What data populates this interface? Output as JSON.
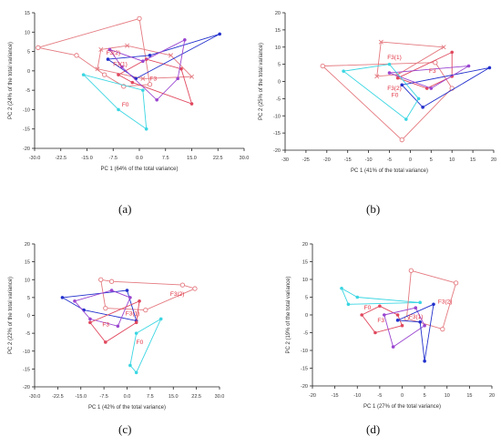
{
  "panel_labels": [
    "(a)",
    "(b)",
    "(c)",
    "(d)"
  ],
  "colors": {
    "red": "#e0485e",
    "pink": "#e2708a",
    "lightred": "#e47a80",
    "blue": "#2230cc",
    "purple": "#9a45d0",
    "cyan": "#3ad6e2",
    "axis": "#222222",
    "text": "#333333",
    "label_red": "#e03040"
  },
  "chart_data": [
    {
      "type": "scatter",
      "panel": "(a)",
      "title": "",
      "xlabel": "PC 1 (64% of the total variance)",
      "ylabel": "PC 2 (24% of the total variance)",
      "xlim": [
        -30,
        30
      ],
      "ylim": [
        -20,
        15
      ],
      "xticks": [
        "-30.0",
        "-22.5",
        "-15.0",
        "-7.5",
        "0.0",
        "7.5",
        "15.0",
        "22.5",
        "30.0"
      ],
      "yticks": [
        "15",
        "10",
        "5",
        "0",
        "-5",
        "-10",
        "-15",
        "-20"
      ],
      "grid": false,
      "annotations": [
        {
          "text": "F3(2)",
          "x": -9.5,
          "y": 4.2
        },
        {
          "text": "F3(1)",
          "x": -7.5,
          "y": 1.2
        },
        {
          "text": "F3",
          "x": 3.0,
          "y": -2.5
        },
        {
          "text": "F0",
          "x": -5.0,
          "y": -9.2
        }
      ],
      "series": [
        {
          "color": "lightred",
          "marker": "circle-open",
          "points": [
            [
              -29,
              6
            ],
            [
              0,
              13.5
            ],
            [
              3,
              -3.5
            ],
            [
              -4.5,
              -4
            ],
            [
              -10,
              -1
            ],
            [
              -18,
              4
            ],
            [
              -29,
              6
            ]
          ]
        },
        {
          "color": "lightred",
          "marker": "x",
          "points": [
            [
              -11,
              5.5
            ],
            [
              -3.5,
              6.5
            ],
            [
              9,
              4
            ],
            [
              15,
              -1.5
            ],
            [
              1,
              -2
            ],
            [
              -12,
              0.5
            ],
            [
              -11,
              5.5
            ]
          ]
        },
        {
          "color": "red",
          "marker": "circle",
          "points": [
            [
              -6,
              -1
            ],
            [
              2,
              3
            ],
            [
              12,
              0.5
            ],
            [
              15,
              -8.5
            ],
            [
              -2,
              -3
            ],
            [
              -6,
              -1
            ]
          ]
        },
        {
          "color": "blue",
          "marker": "circle",
          "points": [
            [
              -9,
              3
            ],
            [
              3,
              4
            ],
            [
              23,
              9.5
            ],
            [
              -1,
              -2
            ],
            [
              -9,
              3
            ]
          ]
        },
        {
          "color": "purple",
          "marker": "circle",
          "points": [
            [
              -8.5,
              5.5
            ],
            [
              1,
              2.5
            ],
            [
              13,
              8
            ],
            [
              11,
              -2
            ],
            [
              5,
              -7.5
            ],
            [
              -5,
              1
            ],
            [
              -8.5,
              5.5
            ]
          ]
        },
        {
          "color": "cyan",
          "marker": "circle",
          "points": [
            [
              -16,
              -1
            ],
            [
              1,
              -5
            ],
            [
              2,
              -15
            ],
            [
              -6,
              -10
            ],
            [
              -16,
              -1
            ]
          ]
        }
      ]
    },
    {
      "type": "scatter",
      "panel": "(b)",
      "title": "",
      "xlabel": "PC 1 (41% of the total variance)",
      "ylabel": "PC 2 (25% of the total variance)",
      "xlim": [
        -30,
        20
      ],
      "ylim": [
        -20,
        20
      ],
      "xticks": [
        "-30",
        "-25",
        "-20",
        "-15",
        "-10",
        "-5",
        "0",
        "5",
        "10",
        "15",
        "20"
      ],
      "yticks": [
        "20",
        "15",
        "10",
        "5",
        "0",
        "-5",
        "-10",
        "-15",
        "-20"
      ],
      "grid": false,
      "annotations": [
        {
          "text": "F3(1)",
          "x": -5.5,
          "y": 6.5
        },
        {
          "text": "F3",
          "x": 4.5,
          "y": 2.5
        },
        {
          "text": "F3(2)",
          "x": -5.5,
          "y": -2.5
        },
        {
          "text": "F0",
          "x": -4.5,
          "y": -4.5
        }
      ],
      "series": [
        {
          "color": "lightred",
          "marker": "x",
          "points": [
            [
              -7,
              11.5
            ],
            [
              8,
              10
            ],
            [
              -3,
              2
            ],
            [
              -8,
              1.5
            ],
            [
              -7,
              11.5
            ]
          ]
        },
        {
          "color": "lightred",
          "marker": "circle-open",
          "points": [
            [
              -21,
              4.5
            ],
            [
              6,
              5.5
            ],
            [
              10,
              -2
            ],
            [
              -2,
              -17
            ],
            [
              -21,
              4.5
            ]
          ]
        },
        {
          "color": "red",
          "marker": "circle",
          "points": [
            [
              -3,
              1
            ],
            [
              10,
              8.5
            ],
            [
              10,
              1.5
            ],
            [
              4,
              -2
            ],
            [
              -3,
              1
            ]
          ]
        },
        {
          "color": "blue",
          "marker": "circle",
          "points": [
            [
              -2,
              -1
            ],
            [
              19,
              4
            ],
            [
              3,
              -7.5
            ],
            [
              -2,
              -1
            ]
          ]
        },
        {
          "color": "purple",
          "marker": "circle",
          "points": [
            [
              -5,
              2.5
            ],
            [
              14,
              4.5
            ],
            [
              5,
              -2
            ],
            [
              -5,
              2.5
            ]
          ]
        },
        {
          "color": "cyan",
          "marker": "circle",
          "points": [
            [
              -16,
              3
            ],
            [
              -5,
              5
            ],
            [
              2,
              -5
            ],
            [
              -1,
              -11
            ],
            [
              -16,
              3
            ]
          ]
        }
      ]
    },
    {
      "type": "scatter",
      "panel": "(c)",
      "title": "",
      "xlabel": "PC 1 (42% of the total variance)",
      "ylabel": "PC 2 (22% of the total variance)",
      "xlim": [
        -30,
        30
      ],
      "ylim": [
        -20,
        20
      ],
      "xticks": [
        "-30.0",
        "-22.5",
        "-15.0",
        "-7.5",
        "0.0",
        "7.5",
        "15.0",
        "22.5",
        "30.0"
      ],
      "yticks": [
        "20",
        "15",
        "10",
        "5",
        "0",
        "-5",
        "-10",
        "-15",
        "-20"
      ],
      "grid": false,
      "annotations": [
        {
          "text": "F3(2)",
          "x": 14,
          "y": 5.5
        },
        {
          "text": "F3(1)",
          "x": -0.5,
          "y": 0
        },
        {
          "text": "F3",
          "x": -8,
          "y": -3
        },
        {
          "text": "F0",
          "x": 3,
          "y": -8
        }
      ],
      "series": [
        {
          "color": "lightred",
          "marker": "circle-open",
          "points": [
            [
              -8.5,
              10
            ],
            [
              -5,
              9.5
            ],
            [
              18,
              8.5
            ],
            [
              22,
              7.5
            ],
            [
              6,
              1.5
            ],
            [
              -7,
              2
            ],
            [
              -8.5,
              10
            ]
          ]
        },
        {
          "color": "blue",
          "marker": "circle",
          "points": [
            [
              -21,
              5
            ],
            [
              0,
              7
            ],
            [
              3,
              -1.5
            ],
            [
              -14,
              1.5
            ],
            [
              -21,
              5
            ]
          ]
        },
        {
          "color": "purple",
          "marker": "circle",
          "points": [
            [
              -17,
              4
            ],
            [
              -5,
              7
            ],
            [
              1,
              5
            ],
            [
              -3,
              -3
            ],
            [
              -12,
              -1
            ],
            [
              -17,
              4
            ]
          ]
        },
        {
          "color": "red",
          "marker": "circle",
          "points": [
            [
              -12,
              -2
            ],
            [
              -7,
              -7.5
            ],
            [
              3,
              -2
            ],
            [
              4,
              4
            ],
            [
              -12,
              -2
            ]
          ]
        },
        {
          "color": "cyan",
          "marker": "circle",
          "points": [
            [
              3,
              -5
            ],
            [
              11,
              -1
            ],
            [
              3,
              -16
            ],
            [
              1,
              -14
            ],
            [
              3,
              -5
            ]
          ]
        }
      ]
    },
    {
      "type": "scatter",
      "panel": "(d)",
      "title": "",
      "xlabel": "PC 1 (27% of the total variance)",
      "ylabel": "PC 2 (19% of the total variance)",
      "xlim": [
        -20,
        20
      ],
      "ylim": [
        -20,
        20
      ],
      "xticks": [
        "-20",
        "-15",
        "-10",
        "-5",
        "0",
        "5",
        "10",
        "15",
        "20"
      ],
      "yticks": [
        "20",
        "15",
        "10",
        "5",
        "0",
        "-5",
        "-10",
        "-15",
        "-20"
      ],
      "grid": false,
      "annotations": [
        {
          "text": "F3(2)",
          "x": 8,
          "y": 3.2
        },
        {
          "text": "F0",
          "x": -8.5,
          "y": 1.5
        },
        {
          "text": "F3",
          "x": -5.5,
          "y": -2
        },
        {
          "text": "F3(1)",
          "x": 1.5,
          "y": -1
        }
      ],
      "series": [
        {
          "color": "cyan",
          "marker": "circle",
          "points": [
            [
              -13.5,
              7.5
            ],
            [
              -10,
              5
            ],
            [
              4,
              3.5
            ],
            [
              -12,
              3
            ],
            [
              -13.5,
              7.5
            ]
          ]
        },
        {
          "color": "lightred",
          "marker": "circle-open",
          "points": [
            [
              2,
              12.5
            ],
            [
              12,
              9
            ],
            [
              9,
              -4
            ],
            [
              1,
              -1
            ],
            [
              2,
              12.5
            ]
          ]
        },
        {
          "color": "red",
          "marker": "circle",
          "points": [
            [
              -9,
              0
            ],
            [
              -5,
              2.5
            ],
            [
              -1,
              0
            ],
            [
              0,
              -3
            ],
            [
              -6,
              -5
            ],
            [
              -9,
              0
            ]
          ]
        },
        {
          "color": "purple",
          "marker": "circle",
          "points": [
            [
              -4,
              0
            ],
            [
              3,
              2
            ],
            [
              5,
              -3
            ],
            [
              -2,
              -9
            ],
            [
              -4,
              0
            ]
          ]
        },
        {
          "color": "blue",
          "marker": "circle",
          "points": [
            [
              -1,
              -1.5
            ],
            [
              7,
              3
            ],
            [
              5,
              -13
            ],
            [
              4,
              -2
            ],
            [
              -1,
              -1.5
            ]
          ]
        }
      ]
    }
  ]
}
